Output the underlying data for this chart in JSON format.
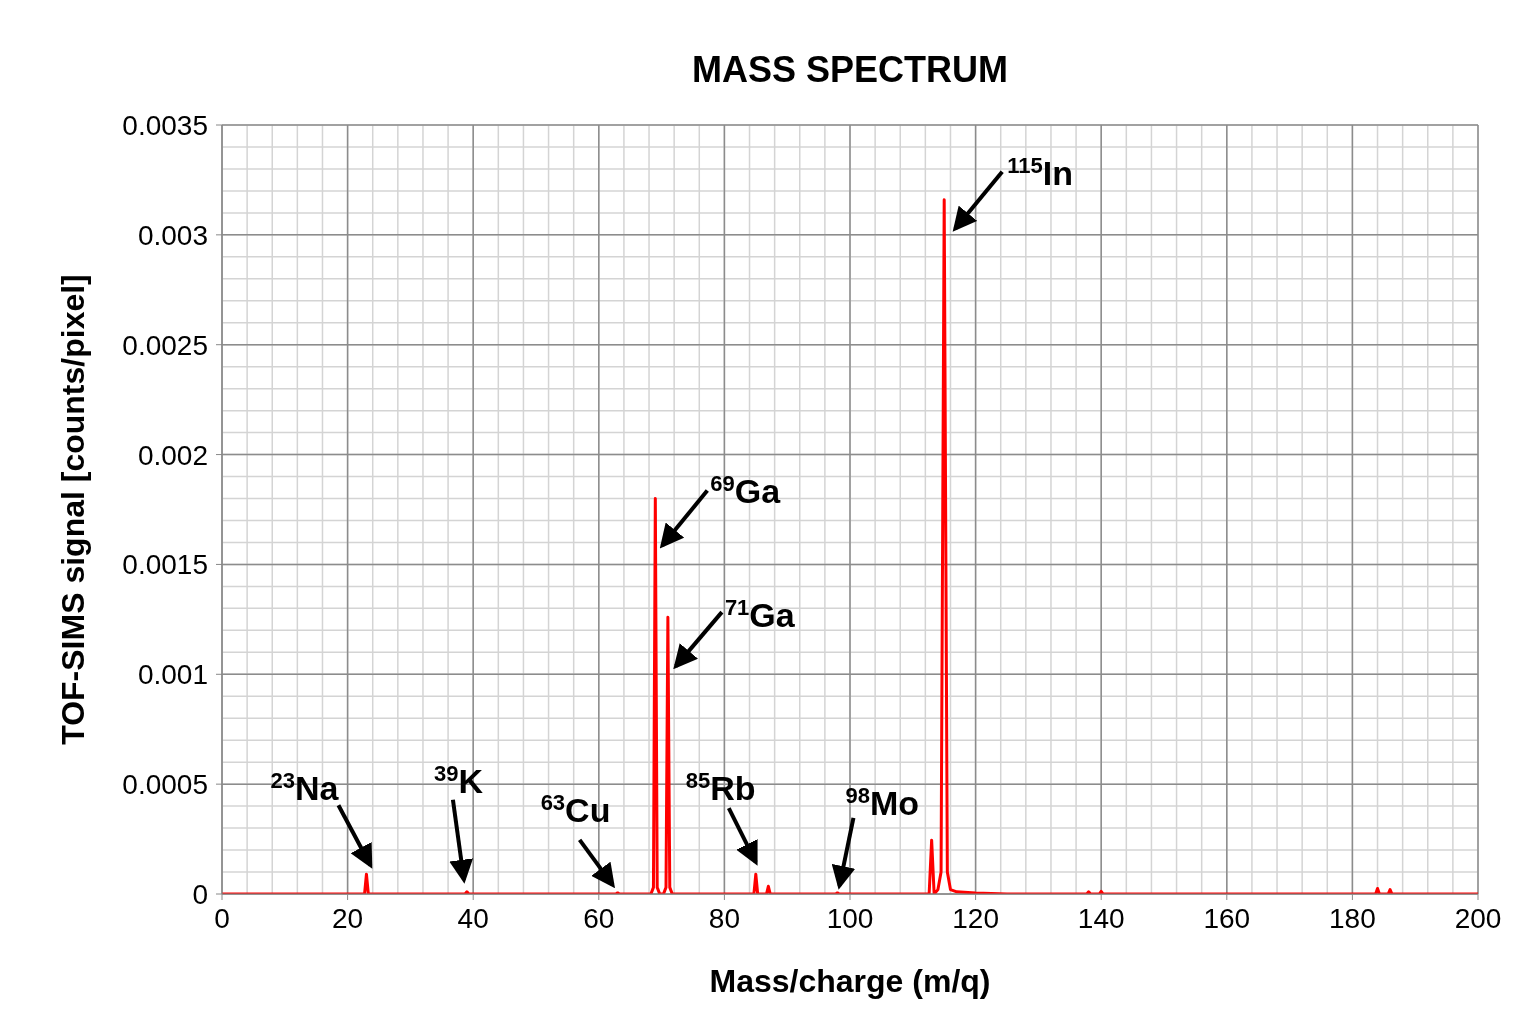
{
  "chart_data": {
    "type": "line",
    "title": "MASS SPECTRUM",
    "xlabel": "Mass/charge (m/q)",
    "ylabel": "TOF-SIMS signal [counts/pixel]",
    "x": [
      0,
      22.7,
      23,
      23.3,
      38.7,
      39,
      39.3,
      62.7,
      63,
      63.3,
      68.3,
      68.7,
      69,
      69.3,
      69.7,
      70.3,
      70.7,
      71,
      71.3,
      71.7,
      84.7,
      85,
      85.3,
      86.7,
      87,
      87.3,
      97.7,
      98,
      98.3,
      112.6,
      113,
      113.4,
      114,
      114.5,
      115,
      115.5,
      116,
      117,
      120,
      125,
      137.7,
      138,
      138.3,
      139.7,
      140,
      140.3,
      183.7,
      184,
      184.3,
      185.7,
      186,
      186.3,
      200
    ],
    "series": [
      {
        "color": "#ff0000",
        "values": [
          0,
          0,
          9e-05,
          0,
          0,
          1e-05,
          0,
          0,
          5e-06,
          0,
          0,
          3e-05,
          0.0018,
          3e-05,
          0,
          0,
          3e-05,
          0.00126,
          3e-05,
          0,
          0,
          9e-05,
          0,
          0,
          3.5e-05,
          0,
          0,
          5e-06,
          0,
          0,
          0.000245,
          0,
          2e-05,
          0.0001,
          0.00316,
          0.0001,
          2e-05,
          1e-05,
          5e-06,
          0,
          0,
          1e-05,
          0,
          0,
          1.2e-05,
          0,
          0,
          2.5e-05,
          0,
          0,
          2e-05,
          0,
          0
        ]
      }
    ],
    "xlim": [
      0,
      200
    ],
    "xticks": [
      0,
      20,
      40,
      60,
      80,
      100,
      120,
      140,
      160,
      180,
      200
    ],
    "ylim": [
      0,
      0.0035
    ],
    "yticks": [
      0,
      0.0005,
      0.001,
      0.0015,
      0.002,
      0.0025,
      0.003,
      0.0035
    ],
    "grid": true,
    "marker": "none",
    "line_style": "solid",
    "annotations": [
      {
        "text": "$^{23}$Na",
        "x": 23,
        "y": 9e-05
      },
      {
        "text": "$^{39}$K",
        "x": 39,
        "y": 1e-05
      },
      {
        "text": "$^{63}$Cu",
        "x": 63,
        "y": 5e-06
      },
      {
        "text": "$^{69}$Ga",
        "x": 69,
        "y": 0.0018
      },
      {
        "text": "$^{71}$Ga",
        "x": 71,
        "y": 0.00126
      },
      {
        "text": "$^{85}$Rb",
        "x": 85,
        "y": 9e-05
      },
      {
        "text": "$^{98}$Mo",
        "x": 98,
        "y": 5e-06
      },
      {
        "text": "$^{115}$In",
        "x": 115,
        "y": 0.00316
      }
    ]
  }
}
